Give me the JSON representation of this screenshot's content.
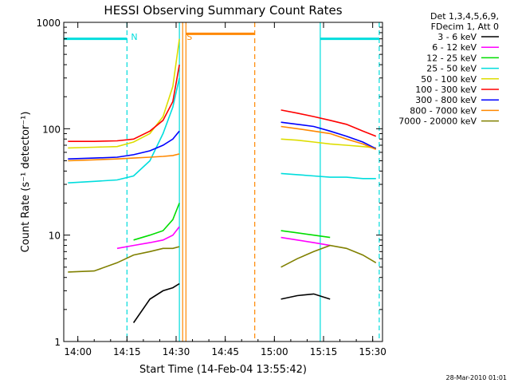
{
  "chart_data": {
    "type": "line",
    "title": "HESSI Observing Summary Count Rates",
    "xlabel": "Start Time (14-Feb-04 13:55:42)",
    "ylabel": "Count Rate (s⁻¹ detector⁻¹)",
    "y_scale": "log",
    "ylim": [
      1,
      1000
    ],
    "xlim": [
      "13:55:42",
      "15:33:00"
    ],
    "x_ticks": [
      "14:00",
      "14:15",
      "14:30",
      "14:45",
      "15:00",
      "15:15",
      "15:30"
    ],
    "y_ticks": [
      1,
      10,
      100,
      1000
    ],
    "y_tick_labels": [
      "1",
      "10",
      "100",
      "1000"
    ],
    "legend_header": [
      "Det 1,3,4,5,6,9,",
      "FDecim 1, Att 0"
    ],
    "legend_position": "right",
    "markers": [
      {
        "label": "N",
        "time": "14:15",
        "color": "#00dddd"
      },
      {
        "label": "S",
        "time": "14:32",
        "color": "#ff8800"
      }
    ],
    "vertical_lines": [
      {
        "time": "14:15",
        "color": "#00dddd",
        "style": "dashed"
      },
      {
        "time": "14:31",
        "color": "#00dddd",
        "style": "solid"
      },
      {
        "time": "14:32",
        "color": "#ff8800",
        "style": "solid"
      },
      {
        "time": "14:33",
        "color": "#ff8800",
        "style": "solid"
      },
      {
        "time": "14:54",
        "color": "#ff8800",
        "style": "dashed"
      },
      {
        "time": "15:14",
        "color": "#00dddd",
        "style": "solid"
      },
      {
        "time": "15:32",
        "color": "#00dddd",
        "style": "dashed"
      }
    ],
    "top_bars": [
      {
        "start": "13:55:42",
        "end": "14:15",
        "value": 700,
        "color": "#00dddd"
      },
      {
        "start": "14:33",
        "end": "14:54",
        "value": 780,
        "color": "#ff8800"
      },
      {
        "start": "15:14",
        "end": "15:32",
        "value": 700,
        "color": "#00dddd"
      }
    ],
    "x": [
      "13:57",
      "14:05",
      "14:12",
      "14:17",
      "14:22",
      "14:26",
      "14:29",
      "14:31",
      "15:02",
      "15:07",
      "15:12",
      "15:17",
      "15:22",
      "15:27",
      "15:31"
    ],
    "series": [
      {
        "name": "3 - 6 keV",
        "color": "#000000",
        "values": [
          null,
          null,
          null,
          1.5,
          2.5,
          3.0,
          3.2,
          3.5,
          2.5,
          2.7,
          2.8,
          2.5,
          null,
          null,
          null
        ]
      },
      {
        "name": "6 - 12 keV",
        "color": "#ff00ff",
        "values": [
          null,
          null,
          7.5,
          8.0,
          8.5,
          9.0,
          10.0,
          12.0,
          9.5,
          9.0,
          8.5,
          8.0,
          null,
          null,
          null
        ]
      },
      {
        "name": "12 - 25 keV",
        "color": "#00dd00",
        "values": [
          null,
          null,
          null,
          9.0,
          10.0,
          11.0,
          14.0,
          20.0,
          11.0,
          10.5,
          10.0,
          9.5,
          null,
          null,
          null
        ]
      },
      {
        "name": "25 - 50 keV",
        "color": "#00dddd",
        "values": [
          31,
          32,
          33,
          36,
          50,
          90,
          160,
          300,
          38,
          37,
          36,
          35,
          35,
          34,
          34
        ]
      },
      {
        "name": "50 - 100 keV",
        "color": "#dddd00",
        "values": [
          66,
          67,
          68,
          75,
          90,
          130,
          250,
          700,
          80,
          78,
          75,
          72,
          70,
          68,
          66
        ]
      },
      {
        "name": "100 - 300 keV",
        "color": "#ff0000",
        "values": [
          76,
          76,
          77,
          80,
          95,
          120,
          180,
          400,
          150,
          140,
          130,
          120,
          110,
          95,
          85
        ]
      },
      {
        "name": "300 - 800 keV",
        "color": "#0000ff",
        "values": [
          52,
          53,
          54,
          57,
          62,
          70,
          80,
          95,
          115,
          110,
          105,
          95,
          85,
          75,
          65
        ]
      },
      {
        "name": "800 - 7000 keV",
        "color": "#ff8800",
        "values": [
          50,
          51,
          52,
          53,
          54,
          55,
          56,
          58,
          105,
          100,
          95,
          90,
          80,
          72,
          64
        ]
      },
      {
        "name": "7000 - 20000 keV",
        "color": "#808000",
        "values": [
          4.5,
          4.6,
          5.5,
          6.5,
          7.0,
          7.5,
          7.5,
          7.8,
          5.0,
          6.0,
          7.0,
          8.0,
          7.5,
          6.5,
          5.5
        ]
      }
    ]
  },
  "footer": {
    "date_stamp": "28-Mar-2010 01:01"
  }
}
